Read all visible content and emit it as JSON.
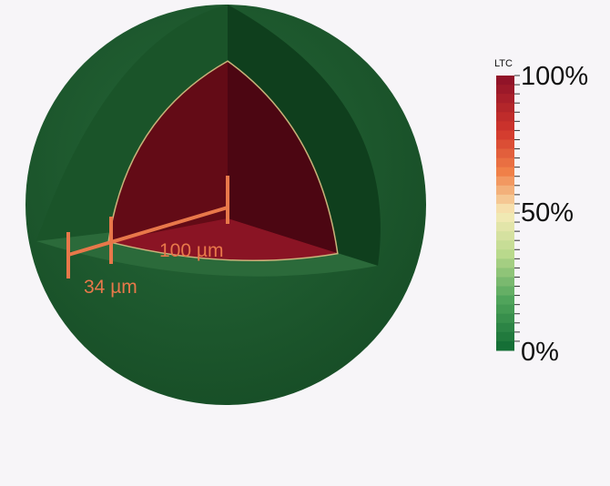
{
  "colorbar": {
    "title": "LTC",
    "labels": [
      "100%",
      "50%",
      "0%"
    ]
  },
  "annotations": {
    "inner_radius": "100 µm",
    "shell_thickness": "34 µm"
  }
}
